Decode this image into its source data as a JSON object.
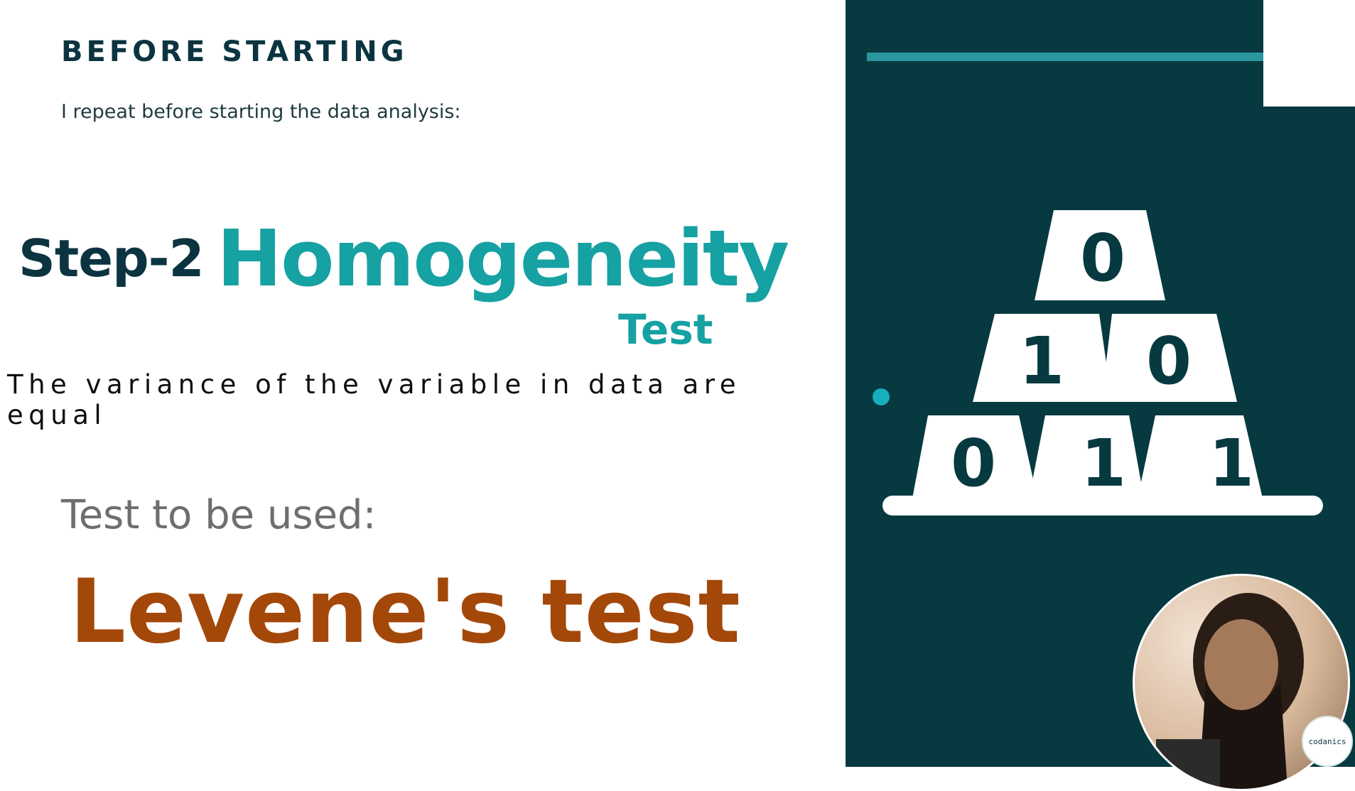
{
  "slide": {
    "heading": "BEFORE STARTING",
    "intro": "I repeat before starting the data analysis:",
    "step_label": "Step-2",
    "title": "Homogeneity",
    "subtitle": "Test",
    "statement": "The variance of the variable in data are equal",
    "test_label": "Test to be used:",
    "test_name": "Levene's test"
  },
  "pyramid": {
    "rows": [
      [
        "0"
      ],
      [
        "1",
        "0"
      ],
      [
        "0",
        "1",
        "1"
      ]
    ]
  },
  "logo": {
    "text": "codanics"
  },
  "colors": {
    "dark_teal": "#073a40",
    "teal_accent": "#16a1a3",
    "heading_dark": "#0b3440",
    "levene_brown": "#a34809",
    "muted_gray": "#6e6e6e"
  }
}
